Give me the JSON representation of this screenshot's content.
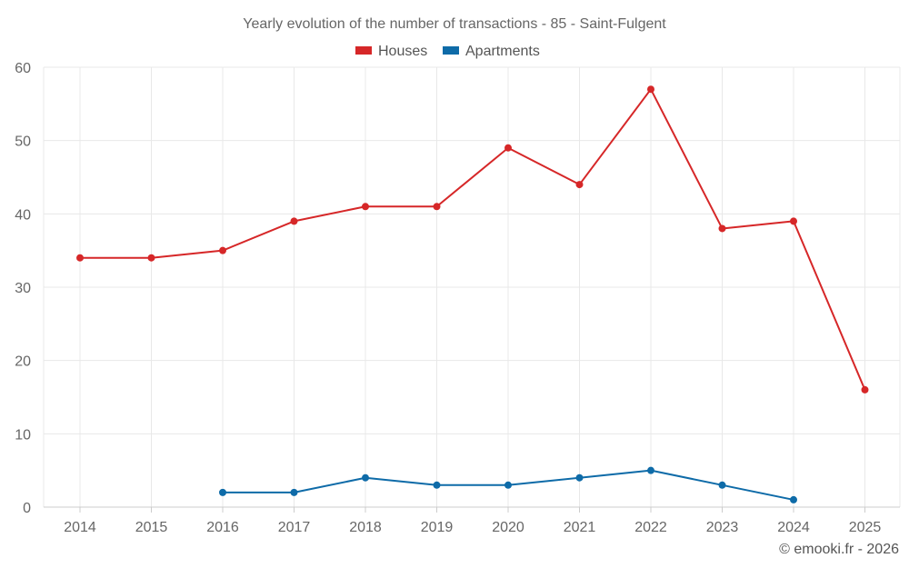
{
  "chart_data": {
    "type": "line",
    "title": "Yearly evolution of the number of transactions - 85 - Saint-Fulgent",
    "categories": [
      "2014",
      "2015",
      "2016",
      "2017",
      "2018",
      "2019",
      "2020",
      "2021",
      "2022",
      "2023",
      "2024",
      "2025"
    ],
    "ylim": [
      0,
      60
    ],
    "yticks": [
      0,
      10,
      20,
      30,
      40,
      50,
      60
    ],
    "legend_position": "top-center",
    "grid": true,
    "series": [
      {
        "name": "Houses",
        "color": "#d62728",
        "values": [
          34,
          34,
          35,
          39,
          41,
          41,
          49,
          44,
          57,
          38,
          39,
          16
        ]
      },
      {
        "name": "Apartments",
        "color": "#0e6ba8",
        "values": [
          null,
          null,
          2,
          2,
          4,
          3,
          3,
          4,
          5,
          3,
          1,
          null
        ]
      }
    ]
  },
  "credit": "© emooki.fr - 2026"
}
